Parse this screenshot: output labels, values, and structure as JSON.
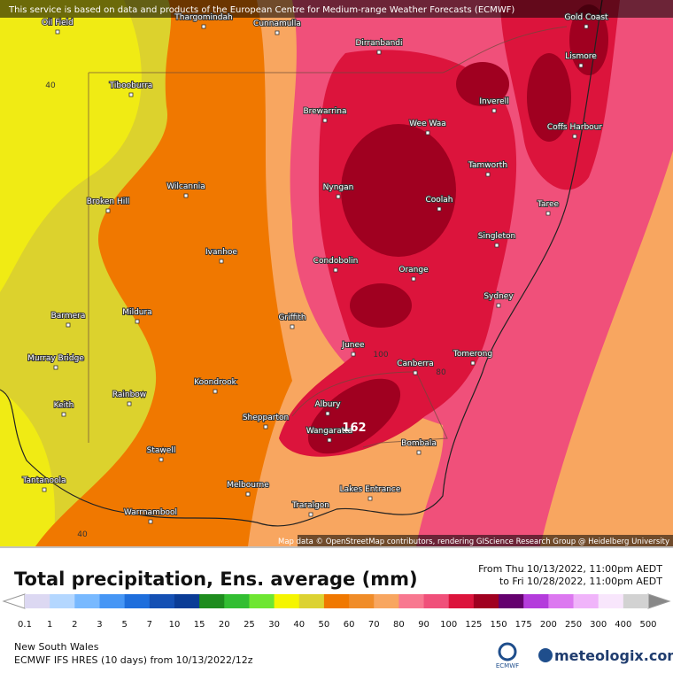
{
  "header": {
    "notice": "This service is based on data and products of the European Centre for Medium-range Weather Forecasts (ECMWF)"
  },
  "map": {
    "places": [
      "Oil Field",
      "Thargomindah",
      "Cunnamulla",
      "Dirranbandi",
      "Tibooburra",
      "Gold Coast",
      "Lismore",
      "Inverell",
      "Brewarrina",
      "Wee Waa",
      "Coffs Harbour",
      "Tamworth",
      "Nyngan",
      "Wilcannia",
      "Broken Hill",
      "Coolah",
      "Taree",
      "Singleton",
      "Ivanhoe",
      "Condobolin",
      "Orange",
      "Sydney",
      "Barmera",
      "Mildura",
      "Griffith",
      "Murray Bridge",
      "Junee",
      "Tomerong",
      "Canberra",
      "Koondrook",
      "Rainbow",
      "Keith",
      "Shepparton",
      "Albury",
      "Wangaratta",
      "Bombala",
      "Stawell",
      "Tantanoola",
      "Melbourne",
      "Lakes Entrance",
      "Warrnambool",
      "Traralgon"
    ],
    "contour_labels": [
      "40",
      "40",
      "100",
      "80",
      "162"
    ],
    "attribution": "Map data © OpenStreetMap contributors, rendering GIScience Research Group @ Heidelberg University"
  },
  "title": "Total precipitation, Ens. average (mm)",
  "period": {
    "from": "From Thu 10/13/2022, 11:00pm AEDT",
    "to": "to Fri 10/28/2022, 11:00pm AEDT"
  },
  "legend": {
    "labels": [
      "0.1",
      "1",
      "2",
      "3",
      "5",
      "7",
      "10",
      "15",
      "20",
      "25",
      "30",
      "40",
      "50",
      "60",
      "70",
      "80",
      "90",
      "100",
      "125",
      "150",
      "175",
      "200",
      "250",
      "300",
      "400",
      "500"
    ],
    "colors": [
      "#dcd8f2",
      "#b4d7ff",
      "#78b9ff",
      "#4696f5",
      "#1e6edc",
      "#1450b4",
      "#0a3c96",
      "#1e8c1e",
      "#32be32",
      "#6ee632",
      "#f5f500",
      "#dcd232",
      "#f07800",
      "#f08c28",
      "#f8a660",
      "#f87890",
      "#f0507a",
      "#dc143c",
      "#a00020",
      "#64006e",
      "#b43cdc",
      "#dc78f0",
      "#f0b4fa",
      "#f8e6fc",
      "#d2d2d2"
    ]
  },
  "footer": {
    "region": "New South Wales",
    "model": "ECMWF IFS HRES (10 days) from 10/13/2022/12z",
    "ecmwf_logo": "ECMWF",
    "brand": "meteologix.com"
  }
}
